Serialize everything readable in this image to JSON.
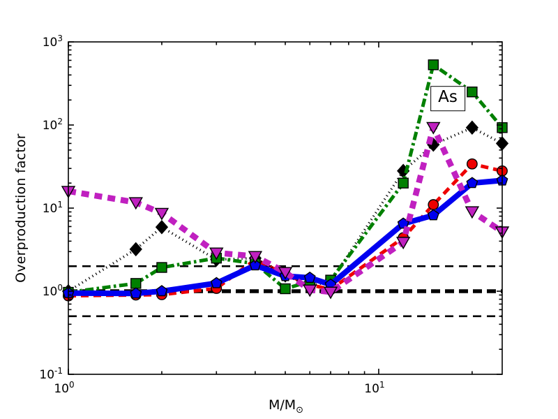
{
  "figure": {
    "background": "#ffffff"
  },
  "chart_data": {
    "type": "line",
    "title": "",
    "ylabel": "Overproduction factor",
    "xlabel_main": "M/M",
    "xlabel_sub": "⊙",
    "xscale": "log",
    "yscale": "log",
    "xlim": [
      1,
      25
    ],
    "ylim": [
      0.1,
      1000
    ],
    "grid": false,
    "legend": "none",
    "annotation": {
      "text": "As"
    },
    "x_major_ticks": [
      {
        "value": 1,
        "label_base": "10",
        "label_exp": "0"
      },
      {
        "value": 10,
        "label_base": "10",
        "label_exp": "1"
      }
    ],
    "x_minor_ticks": [
      2,
      3,
      4,
      5,
      6,
      7,
      8,
      9,
      20
    ],
    "y_major_ticks": [
      {
        "value": 0.1,
        "label_base": "10",
        "label_exp": "-1"
      },
      {
        "value": 1,
        "label_base": "10",
        "label_exp": "0"
      },
      {
        "value": 10,
        "label_base": "10",
        "label_exp": "1"
      },
      {
        "value": 100,
        "label_base": "10",
        "label_exp": "2"
      },
      {
        "value": 1000,
        "label_base": "10",
        "label_exp": "3"
      }
    ],
    "y_minor_ticks": [
      0.2,
      0.3,
      0.4,
      0.5,
      0.6,
      0.7,
      0.8,
      0.9,
      2,
      3,
      4,
      5,
      6,
      7,
      8,
      9,
      20,
      30,
      40,
      50,
      60,
      70,
      80,
      90,
      200,
      300,
      400,
      500,
      600,
      700,
      800,
      900
    ],
    "reference_lines": [
      {
        "y": 2,
        "style": "thin-dashed",
        "color": "#000000"
      },
      {
        "y": 1,
        "style": "thick-dashed",
        "color": "#000000"
      },
      {
        "y": 0.5,
        "style": "thin-dashed",
        "color": "#000000"
      }
    ],
    "x": [
      1,
      1.65,
      2,
      3,
      4,
      5,
      6,
      7,
      12,
      15,
      20,
      25
    ],
    "series": [
      {
        "name": "red-dashed-circles",
        "color": "#ee0000",
        "linestyle": "dashed",
        "marker": "circle",
        "values": [
          0.88,
          0.9,
          0.91,
          1.08,
          2.4,
          1.6,
          1.2,
          1.05,
          4.4,
          11,
          34,
          28
        ]
      },
      {
        "name": "black-dotted-diamonds",
        "color": "#000000",
        "linestyle": "dotted",
        "marker": "diamond",
        "values": [
          1.0,
          3.2,
          5.9,
          2.4,
          2.5,
          1.55,
          1.17,
          1.3,
          28,
          58,
          93,
          60
        ]
      },
      {
        "name": "green-dashdot-squares",
        "color": "#008000",
        "linestyle": "dashdot",
        "marker": "square",
        "values": [
          0.97,
          1.24,
          1.93,
          2.5,
          2.15,
          1.07,
          1.31,
          1.36,
          20,
          530,
          250,
          93
        ]
      },
      {
        "name": "blue-solid-pentagons",
        "color": "#0000f0",
        "linestyle": "solid-thick",
        "marker": "pentagon",
        "values": [
          0.95,
          0.94,
          1.0,
          1.25,
          2.05,
          1.52,
          1.45,
          1.2,
          6.5,
          8.2,
          20,
          21.5
        ]
      },
      {
        "name": "magenta-dashed-triangles",
        "color": "#c020c0",
        "linestyle": "dashed-thick",
        "marker": "triangle-down",
        "values": [
          16,
          11.7,
          8.7,
          2.9,
          2.63,
          1.69,
          1.04,
          0.98,
          3.9,
          94,
          9.1,
          5.2
        ]
      }
    ]
  }
}
